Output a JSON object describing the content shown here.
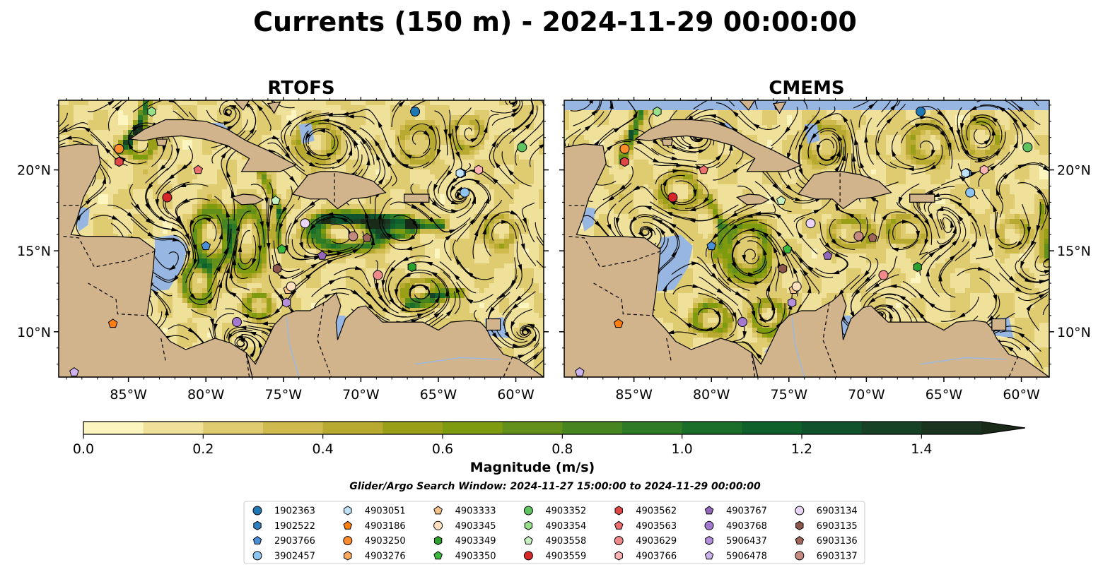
{
  "chart_data": {
    "type": "map",
    "title": "Currents (150 m) - 2024-11-29 00:00:00",
    "extent": {
      "lon": [
        -89.5,
        -58.2
      ],
      "lat": [
        7.2,
        24.3
      ]
    },
    "x_ticks": [
      {
        "value": -85,
        "label": "85°W"
      },
      {
        "value": -80,
        "label": "80°W"
      },
      {
        "value": -75,
        "label": "75°W"
      },
      {
        "value": -70,
        "label": "70°W"
      },
      {
        "value": -65,
        "label": "65°W"
      },
      {
        "value": -60,
        "label": "60°W"
      }
    ],
    "y_ticks": [
      {
        "value": 20,
        "label": "20°N"
      },
      {
        "value": 15,
        "label": "15°N"
      },
      {
        "value": 10,
        "label": "10°N"
      }
    ],
    "panels": [
      {
        "name": "RTOFS"
      },
      {
        "name": "CMEMS"
      }
    ],
    "colorbar": {
      "label": "Magnitude (m/s)",
      "min": 0.0,
      "max": 1.6,
      "step": 0.1,
      "extend": "max",
      "ticks": [
        {
          "value": 0.0,
          "label": "0.0"
        },
        {
          "value": 0.2,
          "label": "0.2"
        },
        {
          "value": 0.4,
          "label": "0.4"
        },
        {
          "value": 0.6,
          "label": "0.6"
        },
        {
          "value": 0.8,
          "label": "0.8"
        },
        {
          "value": 1.0,
          "label": "1.0"
        },
        {
          "value": 1.2,
          "label": "1.2"
        },
        {
          "value": 1.4,
          "label": "1.4"
        }
      ],
      "colors": [
        "#fdf5bf",
        "#efe09a",
        "#e0cc70",
        "#cfba4e",
        "#b8aa30",
        "#99a018",
        "#7e9b10",
        "#62901a",
        "#478521",
        "#2f7a26",
        "#1b6e2a",
        "#10602c",
        "#0f522b",
        "#184226",
        "#1b3420",
        "#1a2a18"
      ]
    },
    "search_window": "Glider/Argo Search Window: 2024-11-27 15:00:00 to 2024-11-29 00:00:00",
    "floats": [
      {
        "id": "1902363",
        "marker": "circle",
        "color": "#1f77b4",
        "lon": -66.5,
        "lat": 23.6,
        "lon_c": -66.5,
        "lat_c": 23.6
      },
      {
        "id": "1902522",
        "marker": "hexagon",
        "color": "#2f7fc1",
        "lon": -63.5,
        "lat": 19.8,
        "lon_c": -63.5,
        "lat_c": 19.8
      },
      {
        "id": "2903766",
        "marker": "pentagon",
        "color": "#4a90d9",
        "lon": -80.0,
        "lat": 15.3,
        "lon_c": -80.0,
        "lat_c": 15.3
      },
      {
        "id": "3902457",
        "marker": "circle",
        "color": "#8ec5f0",
        "lon": -63.3,
        "lat": 18.6,
        "lon_c": -63.3,
        "lat_c": 18.6
      },
      {
        "id": "4903051",
        "marker": "hexagon",
        "color": "#bfe3fa",
        "lon": -63.6,
        "lat": 19.8,
        "lon_c": -63.6,
        "lat_c": 19.8
      },
      {
        "id": "4903186",
        "marker": "pentagon",
        "color": "#ff7f0e",
        "lon": -86.0,
        "lat": 10.5,
        "lon_c": -86.0,
        "lat_c": 10.5
      },
      {
        "id": "4903250",
        "marker": "circle",
        "color": "#ff8c2a",
        "lon": -85.6,
        "lat": 21.3,
        "lon_c": -85.6,
        "lat_c": 21.3
      },
      {
        "id": "4903276",
        "marker": "hexagon",
        "color": "#ffa95c",
        "lon": -85.6,
        "lat": 20.5,
        "lon_c": -85.6,
        "lat_c": 20.5
      },
      {
        "id": "4903333",
        "marker": "pentagon",
        "color": "#f8c48a",
        "lon": -74.7,
        "lat": 12.6,
        "lon_c": -74.7,
        "lat_c": 12.6
      },
      {
        "id": "4903345",
        "marker": "circle",
        "color": "#fde0c0",
        "lon": -74.5,
        "lat": 12.8,
        "lon_c": -74.5,
        "lat_c": 12.8
      },
      {
        "id": "4903349",
        "marker": "hexagon",
        "color": "#2ca02c",
        "lon": -66.7,
        "lat": 14.0,
        "lon_c": -66.7,
        "lat_c": 14.0
      },
      {
        "id": "4903350",
        "marker": "pentagon",
        "color": "#3cb83c",
        "lon": -75.1,
        "lat": 15.1,
        "lon_c": -75.1,
        "lat_c": 15.1
      },
      {
        "id": "4903352",
        "marker": "circle",
        "color": "#5fc45f",
        "lon": -59.6,
        "lat": 21.4,
        "lon_c": -59.6,
        "lat_c": 21.4
      },
      {
        "id": "4903354",
        "marker": "hexagon",
        "color": "#98df8a",
        "lon": -83.5,
        "lat": 23.6,
        "lon_c": -83.5,
        "lat_c": 23.6
      },
      {
        "id": "4903558",
        "marker": "pentagon",
        "color": "#c6f0c0",
        "lon": -75.5,
        "lat": 18.1,
        "lon_c": -75.5,
        "lat_c": 18.1
      },
      {
        "id": "4903559",
        "marker": "circle",
        "color": "#d62728",
        "lon": -82.5,
        "lat": 18.3,
        "lon_c": -82.5,
        "lat_c": 18.3
      },
      {
        "id": "4903562",
        "marker": "hexagon",
        "color": "#e04848",
        "lon": -85.6,
        "lat": 20.5,
        "lon_c": -85.6,
        "lat_c": 20.5
      },
      {
        "id": "4903563",
        "marker": "pentagon",
        "color": "#ee6e6e",
        "lon": -80.5,
        "lat": 20.0,
        "lon_c": -80.5,
        "lat_c": 20.0
      },
      {
        "id": "4903629",
        "marker": "circle",
        "color": "#f08a8a",
        "lon": -68.9,
        "lat": 13.5,
        "lon_c": -68.9,
        "lat_c": 13.5
      },
      {
        "id": "4903766",
        "marker": "hexagon",
        "color": "#ffb3b3",
        "lon": -62.4,
        "lat": 20.0,
        "lon_c": -62.4,
        "lat_c": 20.0
      },
      {
        "id": "4903767",
        "marker": "pentagon",
        "color": "#9467bd",
        "lon": -72.5,
        "lat": 14.7,
        "lon_c": -72.5,
        "lat_c": 14.7
      },
      {
        "id": "4903768",
        "marker": "circle",
        "color": "#a47ad0",
        "lon": -78.0,
        "lat": 10.6,
        "lon_c": -78.0,
        "lat_c": 10.6
      },
      {
        "id": "5906437",
        "marker": "hexagon",
        "color": "#b490dc",
        "lon": -74.8,
        "lat": 11.8,
        "lon_c": -74.8,
        "lat_c": 11.8
      },
      {
        "id": "5906478",
        "marker": "pentagon",
        "color": "#cdb3ee",
        "lon": -88.5,
        "lat": 7.5,
        "lon_c": -88.5,
        "lat_c": 7.5
      },
      {
        "id": "6903134",
        "marker": "circle",
        "color": "#ead4f7",
        "lon": -73.6,
        "lat": 16.7,
        "lon_c": -73.6,
        "lat_c": 16.7
      },
      {
        "id": "6903135",
        "marker": "hexagon",
        "color": "#8c564b",
        "lon": -75.4,
        "lat": 13.9,
        "lon_c": -75.4,
        "lat_c": 13.9
      },
      {
        "id": "6903136",
        "marker": "pentagon",
        "color": "#a0665a",
        "lon": -69.6,
        "lat": 15.8,
        "lon_c": -69.6,
        "lat_c": 15.8
      },
      {
        "id": "6903137",
        "marker": "circle",
        "color": "#c48a80",
        "lon": -70.5,
        "lat": 15.9,
        "lon_c": -70.5,
        "lat_c": 15.9
      }
    ]
  }
}
